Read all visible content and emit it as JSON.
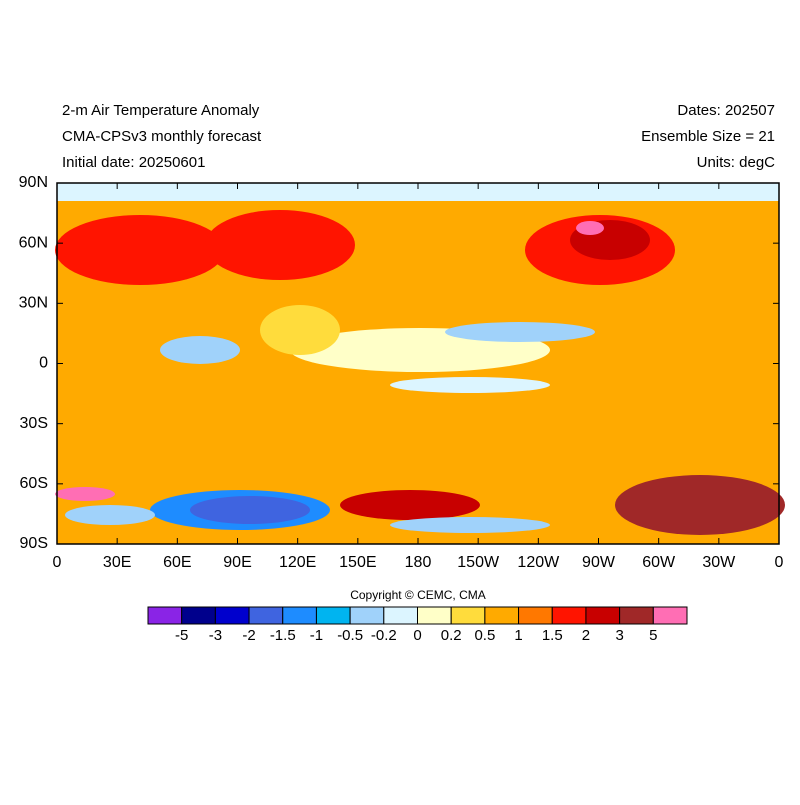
{
  "header": {
    "left": [
      "2-m Air Temperature Anomaly",
      "CMA-CPSv3 monthly forecast",
      "Initial date: 20250601"
    ],
    "right": [
      "Dates: 202507",
      "Ensemble Size = 21",
      "Units: degC"
    ]
  },
  "map": {
    "lat_labels": [
      "90N",
      "60N",
      "30N",
      "0",
      "30S",
      "60S",
      "90S"
    ],
    "lon_labels": [
      "0",
      "30E",
      "60E",
      "90E",
      "120E",
      "150E",
      "180",
      "150W",
      "120W",
      "90W",
      "60W",
      "30W",
      "0"
    ]
  },
  "copyright": "Copyright © CEMC, CMA",
  "colorbar": {
    "labels": [
      "-5",
      "-3",
      "-2",
      "-1.5",
      "-1",
      "-0.5",
      "-0.2",
      "0",
      "0.2",
      "0.5",
      "1",
      "1.5",
      "2",
      "3",
      "5"
    ],
    "colors": [
      "#8a24e6",
      "#00008c",
      "#0000cd",
      "#3f64e0",
      "#1e8cff",
      "#00b4f0",
      "#a0d2fa",
      "#dcf5ff",
      "#ffffc8",
      "#ffdc3c",
      "#ffaa00",
      "#ff7800",
      "#ff1400",
      "#c80000",
      "#a02828",
      "#ff6eb4"
    ]
  }
}
